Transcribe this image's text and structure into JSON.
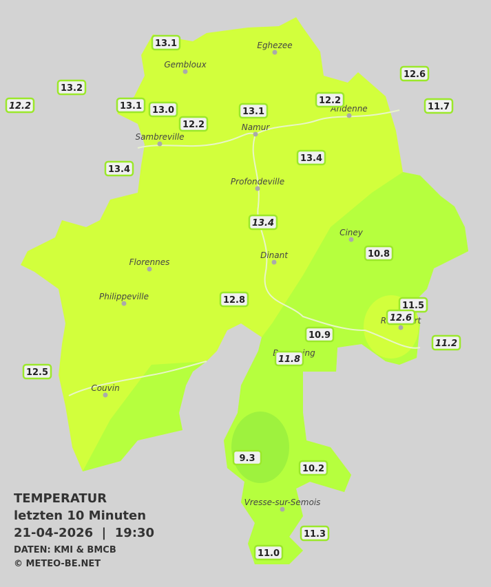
{
  "title": "TEMPERATUR",
  "subtitle": "letzten 10 Minuten",
  "datetime": "21-04-2026  |  19:30",
  "source": "DATEN: KMI & BMCB",
  "copyright": "© METEO-BE.NET",
  "places": [
    "Eghezee",
    "Gembloux",
    "Andenne",
    "Namur",
    "Sambreville",
    "Profondeville",
    "Ciney",
    "Dinant",
    "Florennes",
    "Philippeville",
    "Rochefort",
    "Beauraing",
    "Couvin",
    "Vresse-sur-Semois"
  ],
  "stations": [
    {
      "label": "13.1",
      "italic": false
    },
    {
      "label": "13.2",
      "italic": false
    },
    {
      "label": "12.2",
      "italic": true
    },
    {
      "label": "13.1",
      "italic": false
    },
    {
      "label": "13.0",
      "italic": false
    },
    {
      "label": "12.2",
      "italic": false
    },
    {
      "label": "13.1",
      "italic": false
    },
    {
      "label": "12.2",
      "italic": false
    },
    {
      "label": "12.6",
      "italic": false
    },
    {
      "label": "11.7",
      "italic": false
    },
    {
      "label": "13.4",
      "italic": false
    },
    {
      "label": "13.4",
      "italic": false
    },
    {
      "label": "13.4",
      "italic": true
    },
    {
      "label": "10.8",
      "italic": false
    },
    {
      "label": "12.8",
      "italic": false
    },
    {
      "label": "11.5",
      "italic": false
    },
    {
      "label": "12.6",
      "italic": true
    },
    {
      "label": "10.9",
      "italic": false
    },
    {
      "label": "11.2",
      "italic": true
    },
    {
      "label": "11.8",
      "italic": true
    },
    {
      "label": "12.5",
      "italic": false
    },
    {
      "label": "9.3",
      "italic": false
    },
    {
      "label": "10.2",
      "italic": false
    },
    {
      "label": "11.3",
      "italic": false
    },
    {
      "label": "11.0",
      "italic": false
    }
  ]
}
